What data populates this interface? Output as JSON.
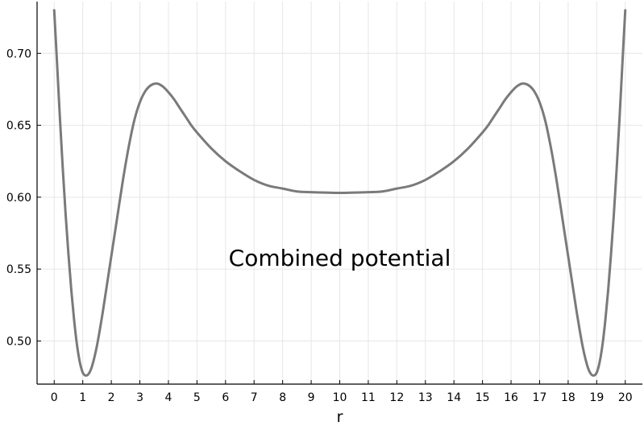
{
  "chart_data": {
    "type": "line",
    "title": "",
    "xlabel": "r",
    "ylabel": "",
    "xlim": [
      -0.6,
      20.6
    ],
    "ylim": [
      0.47,
      0.736
    ],
    "xticks": [
      0,
      1,
      2,
      3,
      4,
      5,
      6,
      7,
      8,
      9,
      10,
      11,
      12,
      13,
      14,
      15,
      16,
      17,
      18,
      19,
      20
    ],
    "xtick_labels": [
      "0",
      "1",
      "2",
      "3",
      "4",
      "5",
      "6",
      "7",
      "8",
      "9",
      "10",
      "11",
      "12",
      "13",
      "14",
      "15",
      "16",
      "17",
      "18",
      "19",
      "20"
    ],
    "yticks": [
      0.5,
      0.55,
      0.6,
      0.65,
      0.7
    ],
    "ytick_labels": [
      "0.50",
      "0.55",
      "0.60",
      "0.65",
      "0.70"
    ],
    "grid": true,
    "legend": "none",
    "annotation": {
      "text": "Combined potential",
      "x": 10,
      "y": 0.558
    },
    "series": [
      {
        "color": "#7a7a7a",
        "x": [
          0,
          0.1,
          0.2,
          0.3,
          0.4,
          0.5,
          0.6,
          0.7,
          0.8,
          0.9,
          1.0,
          1.1,
          1.2,
          1.3,
          1.4,
          1.5,
          1.6,
          1.7,
          1.8,
          1.9,
          2.0,
          2.2,
          2.4,
          2.6,
          2.8,
          3.0,
          3.2,
          3.4,
          3.6,
          3.8,
          4.0,
          4.2,
          4.4,
          4.6,
          4.8,
          5.0,
          5.5,
          6.0,
          6.5,
          7.0,
          7.5,
          8.0,
          8.5,
          9.0,
          9.5,
          10.0,
          10.5,
          11.0,
          11.5,
          12.0,
          12.5,
          13.0,
          13.5,
          14.0,
          14.5,
          15.0,
          15.2,
          15.4,
          15.6,
          15.8,
          16.0,
          16.2,
          16.4,
          16.6,
          16.8,
          17.0,
          17.2,
          17.4,
          17.6,
          17.8,
          18.0,
          18.1,
          18.2,
          18.3,
          18.4,
          18.5,
          18.6,
          18.7,
          18.8,
          18.9,
          19.0,
          19.1,
          19.2,
          19.3,
          19.4,
          19.5,
          19.6,
          19.7,
          19.8,
          19.9,
          20.0
        ],
        "values": [
          0.73,
          0.693,
          0.655,
          0.62,
          0.588,
          0.56,
          0.535,
          0.514,
          0.497,
          0.485,
          0.478,
          0.476,
          0.477,
          0.481,
          0.488,
          0.497,
          0.508,
          0.52,
          0.533,
          0.546,
          0.559,
          0.585,
          0.611,
          0.634,
          0.653,
          0.666,
          0.674,
          0.678,
          0.679,
          0.677,
          0.673,
          0.668,
          0.662,
          0.656,
          0.65,
          0.645,
          0.634,
          0.625,
          0.618,
          0.612,
          0.608,
          0.606,
          0.604,
          0.6035,
          0.6032,
          0.603,
          0.6032,
          0.6035,
          0.604,
          0.606,
          0.608,
          0.612,
          0.618,
          0.625,
          0.634,
          0.645,
          0.65,
          0.656,
          0.662,
          0.668,
          0.673,
          0.677,
          0.679,
          0.678,
          0.674,
          0.666,
          0.653,
          0.634,
          0.611,
          0.585,
          0.559,
          0.546,
          0.533,
          0.52,
          0.508,
          0.497,
          0.488,
          0.481,
          0.477,
          0.476,
          0.478,
          0.485,
          0.497,
          0.514,
          0.535,
          0.56,
          0.588,
          0.62,
          0.655,
          0.693,
          0.73
        ]
      }
    ]
  }
}
